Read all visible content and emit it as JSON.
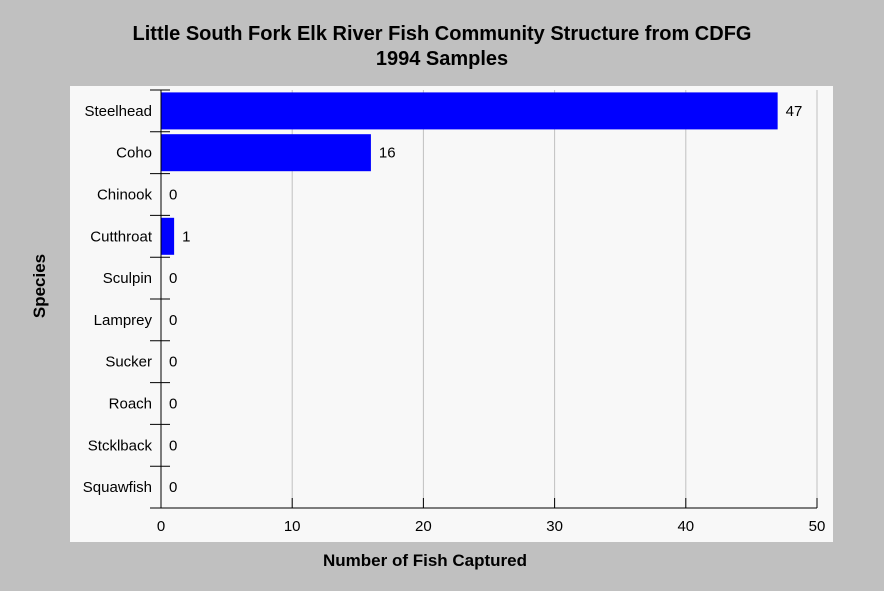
{
  "chart_data": {
    "type": "bar",
    "orientation": "horizontal",
    "title_lines": [
      "Little South Fork Elk River Fish Community Structure from CDFG",
      "1994 Samples"
    ],
    "xlabel": "Number of Fish Captured",
    "ylabel": "Species",
    "categories": [
      "Steelhead",
      "Coho",
      "Chinook",
      "Cutthroat",
      "Sculpin",
      "Lamprey",
      "Sucker",
      "Roach",
      "Stcklback",
      "Squawfish"
    ],
    "values": [
      47,
      16,
      0,
      1,
      0,
      0,
      0,
      0,
      0,
      0
    ],
    "data_labels": [
      "47",
      "16",
      "0",
      "1",
      "0",
      "0",
      "0",
      "0",
      "0",
      "0"
    ],
    "xlim": [
      0,
      50
    ],
    "xticks": [
      0,
      10,
      20,
      30,
      40,
      50
    ],
    "xtick_labels": [
      "0",
      "10",
      "20",
      "30",
      "40",
      "50"
    ],
    "grid": "vertical",
    "legend": "none",
    "colors": {
      "bar": "#0000ff",
      "plot_bg": "#f8f8f8",
      "page_bg": "#c0c0c0",
      "grid": "#c0c0c0"
    }
  }
}
